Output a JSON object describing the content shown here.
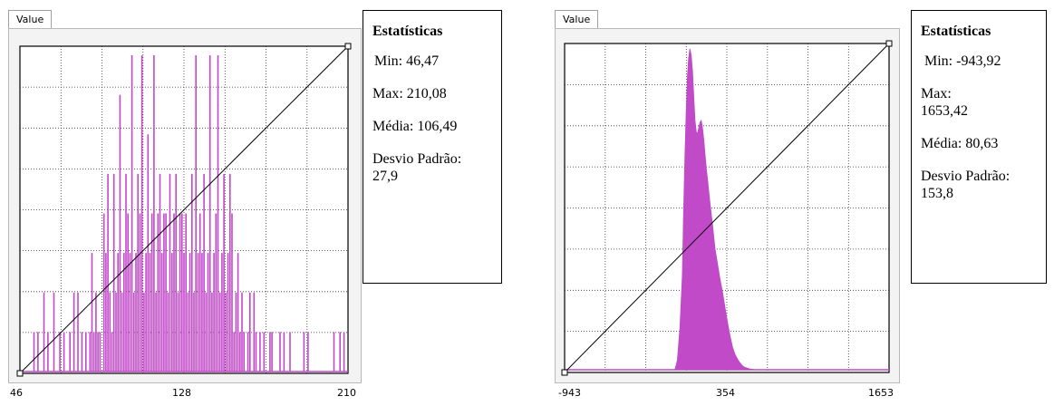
{
  "panels": [
    {
      "tab_label": "Value",
      "x_ticks": [
        "46",
        "128",
        "210"
      ],
      "stats": {
        "title": "Estatísticas",
        "min": "Min: 46,47",
        "max": "Max:  210,08",
        "mean": "Média: 106,49",
        "std": "Desvio Padrão: 27,9"
      }
    },
    {
      "tab_label": "Value",
      "x_ticks": [
        "-943",
        "354",
        "1653"
      ],
      "stats": {
        "title": "Estatísticas",
        "min": "Min: -943,92",
        "max": "Max: 1653,42",
        "mean": "Média: 80,63",
        "std": "Desvio Padrão: 153,8"
      }
    }
  ],
  "chart_data": [
    {
      "type": "bar",
      "xlim": [
        46,
        210
      ],
      "x_tick_values": [
        46,
        128,
        210
      ],
      "grid": true,
      "color": "#c04ac8",
      "bins": [
        [
          53,
          1
        ],
        [
          55,
          1
        ],
        [
          58,
          2
        ],
        [
          60,
          1
        ],
        [
          63,
          2
        ],
        [
          66,
          1
        ],
        [
          68,
          1
        ],
        [
          71,
          1
        ],
        [
          73,
          2
        ],
        [
          75,
          2
        ],
        [
          77,
          1
        ],
        [
          79,
          1
        ],
        [
          81,
          1
        ],
        [
          82,
          3
        ],
        [
          83,
          1
        ],
        [
          84,
          2
        ],
        [
          85,
          1
        ],
        [
          86,
          1
        ],
        [
          88,
          4
        ],
        [
          89,
          3
        ],
        [
          90,
          5
        ],
        [
          91,
          2
        ],
        [
          92,
          1
        ],
        [
          93,
          5
        ],
        [
          94,
          2
        ],
        [
          95,
          3
        ],
        [
          96,
          7
        ],
        [
          97,
          2
        ],
        [
          98,
          3
        ],
        [
          99,
          5
        ],
        [
          100,
          4
        ],
        [
          101,
          3
        ],
        [
          102,
          8
        ],
        [
          103,
          2
        ],
        [
          104,
          3
        ],
        [
          105,
          5
        ],
        [
          106,
          4
        ],
        [
          107,
          8
        ],
        [
          108,
          2
        ],
        [
          109,
          3
        ],
        [
          110,
          6
        ],
        [
          111,
          3
        ],
        [
          112,
          4
        ],
        [
          113,
          8
        ],
        [
          114,
          2
        ],
        [
          115,
          4
        ],
        [
          116,
          5
        ],
        [
          117,
          3
        ],
        [
          118,
          4
        ],
        [
          119,
          4
        ],
        [
          120,
          2
        ],
        [
          121,
          5
        ],
        [
          122,
          3
        ],
        [
          123,
          4
        ],
        [
          124,
          5
        ],
        [
          125,
          2
        ],
        [
          126,
          4
        ],
        [
          127,
          4
        ],
        [
          128,
          3
        ],
        [
          129,
          4
        ],
        [
          130,
          2
        ],
        [
          131,
          3
        ],
        [
          132,
          5
        ],
        [
          133,
          2
        ],
        [
          134,
          8
        ],
        [
          135,
          3
        ],
        [
          136,
          4
        ],
        [
          137,
          3
        ],
        [
          138,
          5
        ],
        [
          139,
          2
        ],
        [
          140,
          3
        ],
        [
          141,
          8
        ],
        [
          142,
          2
        ],
        [
          143,
          3
        ],
        [
          144,
          4
        ],
        [
          145,
          8
        ],
        [
          146,
          2
        ],
        [
          147,
          3
        ],
        [
          148,
          5
        ],
        [
          149,
          2
        ],
        [
          150,
          3
        ],
        [
          151,
          5
        ],
        [
          152,
          4
        ],
        [
          153,
          1
        ],
        [
          154,
          2
        ],
        [
          155,
          3
        ],
        [
          156,
          1
        ],
        [
          157,
          2
        ],
        [
          158,
          1
        ],
        [
          160,
          1
        ],
        [
          161,
          2
        ],
        [
          163,
          2
        ],
        [
          164,
          1
        ],
        [
          166,
          1
        ],
        [
          168,
          1
        ],
        [
          171,
          1
        ],
        [
          172,
          1
        ],
        [
          176,
          1
        ],
        [
          178,
          1
        ],
        [
          181,
          1
        ],
        [
          188,
          1
        ],
        [
          190,
          1
        ],
        [
          203,
          1
        ],
        [
          206,
          1
        ],
        [
          208,
          1
        ]
      ]
    },
    {
      "type": "area",
      "xlim": [
        -943,
        1653
      ],
      "x_tick_values": [
        -943,
        354,
        1653
      ],
      "grid": true,
      "color": "#c04ac8",
      "x": [
        -60,
        -40,
        -20,
        0,
        10,
        20,
        30,
        40,
        50,
        60,
        70,
        80,
        90,
        100,
        110,
        120,
        130,
        140,
        150,
        160,
        170,
        180,
        190,
        200,
        220,
        240,
        260,
        280,
        300,
        320,
        340,
        360,
        380,
        400,
        420,
        440,
        460,
        480,
        500,
        540,
        580
      ],
      "y": [
        0,
        25,
        110,
        250,
        420,
        560,
        680,
        775,
        825,
        850,
        830,
        790,
        720,
        660,
        630,
        625,
        640,
        655,
        660,
        640,
        610,
        570,
        535,
        505,
        440,
        385,
        320,
        280,
        240,
        205,
        165,
        125,
        90,
        60,
        40,
        28,
        18,
        10,
        6,
        2,
        0
      ]
    }
  ]
}
